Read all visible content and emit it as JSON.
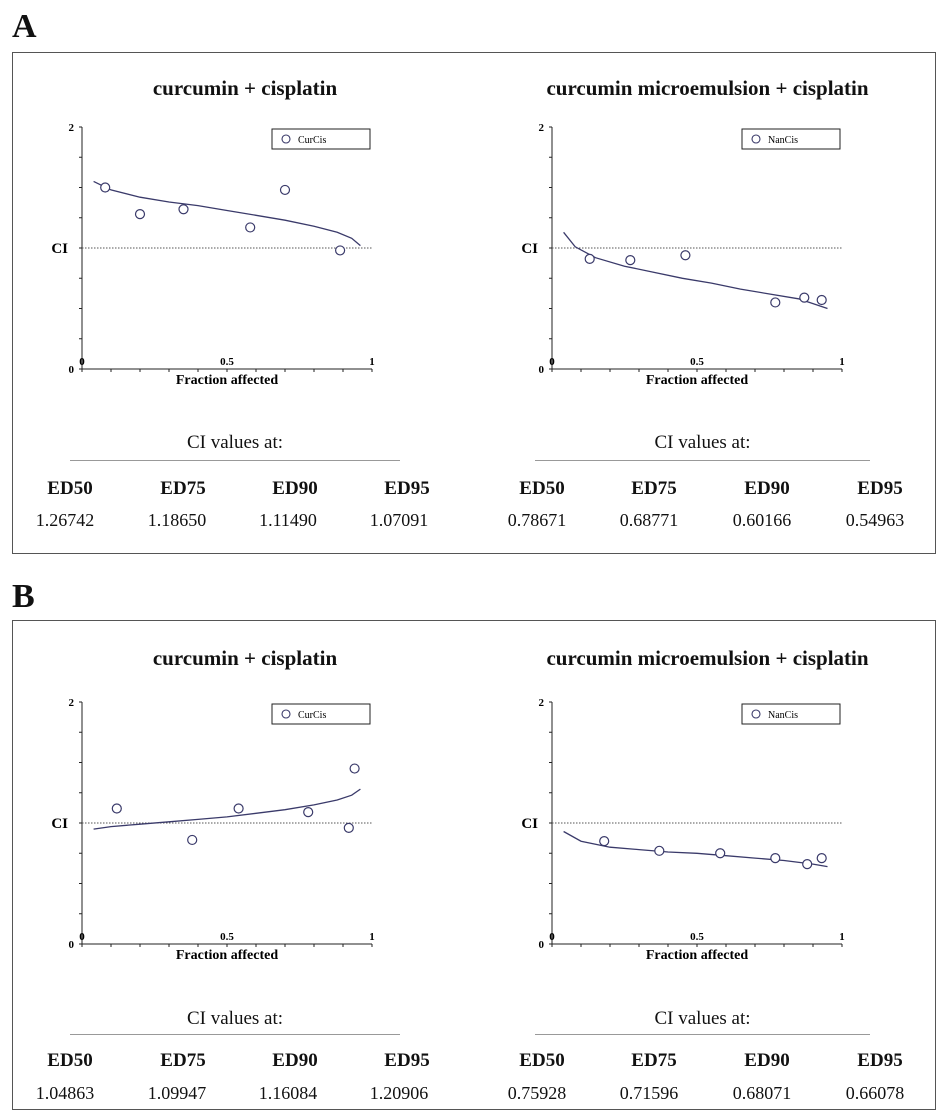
{
  "panels": [
    {
      "letter": "A"
    },
    {
      "letter": "B"
    }
  ],
  "chart_data": [
    {
      "type": "scatter",
      "panel": "A",
      "title": "curcumin + cisplatin",
      "xlabel": "Fraction affected",
      "ylabel": "CI",
      "xlim": [
        0,
        1
      ],
      "ylim": [
        0,
        2
      ],
      "xticks": [
        {
          "v": 0,
          "t": "0"
        },
        {
          "v": 0.5,
          "t": "0.5"
        },
        {
          "v": 1,
          "t": "1"
        }
      ],
      "yticks": [
        {
          "v": 0,
          "t": "0"
        },
        {
          "v": 2,
          "t": "2"
        }
      ],
      "reference_line": 1,
      "legend": "top-right",
      "series": [
        {
          "name": "CurCis",
          "points": [
            [
              0.08,
              1.5
            ],
            [
              0.2,
              1.28
            ],
            [
              0.35,
              1.32
            ],
            [
              0.58,
              1.17
            ],
            [
              0.7,
              1.48
            ],
            [
              0.89,
              0.98
            ]
          ],
          "fit_curve": [
            [
              0.04,
              1.55
            ],
            [
              0.1,
              1.48
            ],
            [
              0.2,
              1.42
            ],
            [
              0.3,
              1.38
            ],
            [
              0.4,
              1.35
            ],
            [
              0.5,
              1.31
            ],
            [
              0.6,
              1.27
            ],
            [
              0.7,
              1.23
            ],
            [
              0.8,
              1.18
            ],
            [
              0.88,
              1.13
            ],
            [
              0.93,
              1.08
            ],
            [
              0.96,
              1.02
            ]
          ]
        }
      ],
      "ci_values": {
        "heading": "CI values at:",
        "labels": [
          "ED50",
          "ED75",
          "ED90",
          "ED95"
        ],
        "values": [
          "1.26742",
          "1.18650",
          "1.11490",
          "1.07091"
        ]
      }
    },
    {
      "type": "scatter",
      "panel": "A",
      "title": "curcumin microemulsion + cisplatin",
      "xlabel": "Fraction affected",
      "ylabel": "CI",
      "xlim": [
        0,
        1
      ],
      "ylim": [
        0,
        2
      ],
      "xticks": [
        {
          "v": 0,
          "t": "0"
        },
        {
          "v": 0.5,
          "t": "0.5"
        },
        {
          "v": 1,
          "t": "1"
        }
      ],
      "yticks": [
        {
          "v": 0,
          "t": "0"
        },
        {
          "v": 2,
          "t": "2"
        }
      ],
      "reference_line": 1,
      "legend": "top-right",
      "series": [
        {
          "name": "NanCis",
          "points": [
            [
              0.13,
              0.91
            ],
            [
              0.27,
              0.9
            ],
            [
              0.46,
              0.94
            ],
            [
              0.77,
              0.55
            ],
            [
              0.87,
              0.59
            ],
            [
              0.93,
              0.57
            ]
          ],
          "fit_curve": [
            [
              0.04,
              1.13
            ],
            [
              0.08,
              1.01
            ],
            [
              0.15,
              0.92
            ],
            [
              0.25,
              0.85
            ],
            [
              0.35,
              0.8
            ],
            [
              0.45,
              0.75
            ],
            [
              0.55,
              0.71
            ],
            [
              0.65,
              0.66
            ],
            [
              0.75,
              0.62
            ],
            [
              0.85,
              0.58
            ],
            [
              0.95,
              0.5
            ]
          ]
        }
      ],
      "ci_values": {
        "heading": "CI values at:",
        "labels": [
          "ED50",
          "ED75",
          "ED90",
          "ED95"
        ],
        "values": [
          "0.78671",
          "0.68771",
          "0.60166",
          "0.54963"
        ]
      }
    },
    {
      "type": "scatter",
      "panel": "B",
      "title": "curcumin + cisplatin",
      "xlabel": "Fraction affected",
      "ylabel": "CI",
      "xlim": [
        0,
        1
      ],
      "ylim": [
        0,
        2
      ],
      "xticks": [
        {
          "v": 0,
          "t": "0"
        },
        {
          "v": 0.5,
          "t": "0.5"
        },
        {
          "v": 1,
          "t": "1"
        }
      ],
      "yticks": [
        {
          "v": 0,
          "t": "0"
        },
        {
          "v": 2,
          "t": "2"
        }
      ],
      "reference_line": 1,
      "legend": "top-right",
      "series": [
        {
          "name": "CurCis",
          "points": [
            [
              0.12,
              1.12
            ],
            [
              0.38,
              0.86
            ],
            [
              0.54,
              1.12
            ],
            [
              0.78,
              1.09
            ],
            [
              0.92,
              0.96
            ],
            [
              0.94,
              1.45
            ]
          ],
          "fit_curve": [
            [
              0.04,
              0.95
            ],
            [
              0.1,
              0.97
            ],
            [
              0.2,
              0.99
            ],
            [
              0.3,
              1.01
            ],
            [
              0.4,
              1.03
            ],
            [
              0.5,
              1.05
            ],
            [
              0.6,
              1.08
            ],
            [
              0.7,
              1.11
            ],
            [
              0.8,
              1.15
            ],
            [
              0.88,
              1.19
            ],
            [
              0.93,
              1.23
            ],
            [
              0.96,
              1.28
            ]
          ]
        }
      ],
      "ci_values": {
        "heading": "CI values at:",
        "labels": [
          "ED50",
          "ED75",
          "ED90",
          "ED95"
        ],
        "values": [
          "1.04863",
          "1.09947",
          "1.16084",
          "1.20906"
        ]
      }
    },
    {
      "type": "scatter",
      "panel": "B",
      "title": "curcumin microemulsion + cisplatin",
      "xlabel": "Fraction affected",
      "ylabel": "CI",
      "xlim": [
        0,
        1
      ],
      "ylim": [
        0,
        2
      ],
      "xticks": [
        {
          "v": 0,
          "t": "0"
        },
        {
          "v": 0.5,
          "t": "0.5"
        },
        {
          "v": 1,
          "t": "1"
        }
      ],
      "yticks": [
        {
          "v": 0,
          "t": "0"
        },
        {
          "v": 2,
          "t": "2"
        }
      ],
      "reference_line": 1,
      "legend": "top-right",
      "series": [
        {
          "name": "NanCis",
          "points": [
            [
              0.18,
              0.85
            ],
            [
              0.37,
              0.77
            ],
            [
              0.58,
              0.75
            ],
            [
              0.77,
              0.71
            ],
            [
              0.88,
              0.66
            ],
            [
              0.93,
              0.71
            ]
          ],
          "fit_curve": [
            [
              0.04,
              0.93
            ],
            [
              0.1,
              0.85
            ],
            [
              0.2,
              0.8
            ],
            [
              0.3,
              0.78
            ],
            [
              0.4,
              0.76
            ],
            [
              0.5,
              0.75
            ],
            [
              0.6,
              0.73
            ],
            [
              0.7,
              0.71
            ],
            [
              0.8,
              0.69
            ],
            [
              0.9,
              0.66
            ],
            [
              0.95,
              0.64
            ]
          ]
        }
      ],
      "ci_values": {
        "heading": "CI values at:",
        "labels": [
          "ED50",
          "ED75",
          "ED90",
          "ED95"
        ],
        "values": [
          "0.75928",
          "0.71596",
          "0.68071",
          "0.66078"
        ]
      }
    }
  ]
}
